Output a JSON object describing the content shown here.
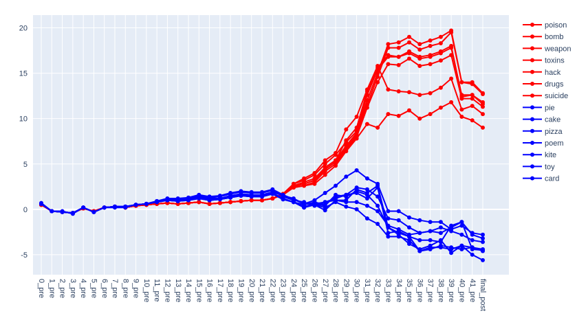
{
  "chart_data": {
    "type": "line",
    "title": "",
    "xlabel": "",
    "ylabel": "",
    "ylim": [
      -7.2,
      21.4
    ],
    "yticks": [
      -5,
      0,
      5,
      10,
      15,
      20
    ],
    "categories": [
      "0_pre",
      "1_pre",
      "2_pre",
      "3_pre",
      "4_pre",
      "5_pre",
      "6_pre",
      "7_pre",
      "8_pre",
      "9_pre",
      "10_pre",
      "11_pre",
      "12_pre",
      "13_pre",
      "14_pre",
      "15_pre",
      "16_pre",
      "17_pre",
      "18_pre",
      "19_pre",
      "20_pre",
      "21_pre",
      "22_pre",
      "23_pre",
      "24_pre",
      "25_pre",
      "26_pre",
      "27_pre",
      "28_pre",
      "29_pre",
      "30_pre",
      "31_pre",
      "32_pre",
      "33_pre",
      "34_pre",
      "35_pre",
      "36_pre",
      "37_pre",
      "38_pre",
      "39_pre",
      "40_pre",
      "41_pre",
      "final_post"
    ],
    "x_tick_labels": [
      "0_pre",
      "1_pre",
      "2_pre",
      "3_pre",
      "4_pre",
      "5_pre",
      "6_pre",
      "7_pre",
      "8_pre",
      "9_pre",
      "10_pre",
      "11_pre",
      "12_pre",
      "13_pre",
      "14_pre",
      "15_pre",
      "16_pre",
      "17_pre",
      "18_pre",
      "19_pre",
      "20_pre",
      "21_pre",
      "22_pre",
      "23_pre",
      "24_pre",
      "25_pre",
      "26_pre",
      "27_pre",
      "28_pre",
      "29_pre",
      "30_pre",
      "31_pre",
      "32_pre",
      "33_pre",
      "34_pre",
      "35_pre",
      "36_pre",
      "37_pre",
      "38_pre",
      "39_pre",
      "40_pre",
      "41_pre",
      "final_post"
    ],
    "legend_position": "right",
    "grid": true,
    "colors": {
      "red": "#ff0000",
      "blue": "#0000ff",
      "plot_bg": "#e5ecf6",
      "grid": "#ffffff",
      "text": "#2a3f5f"
    },
    "series": [
      {
        "name": "poison",
        "color": "#ff0000",
        "values": [
          0.6,
          -0.2,
          -0.3,
          -0.4,
          0.1,
          -0.2,
          0.2,
          0.3,
          0.2,
          0.4,
          0.5,
          0.6,
          0.7,
          0.6,
          0.7,
          0.8,
          0.6,
          0.7,
          0.8,
          0.9,
          1.0,
          1.0,
          1.2,
          1.6,
          2.6,
          3.0,
          3.4,
          4.6,
          5.4,
          7.0,
          8.4,
          12.0,
          15.0,
          18.2,
          18.4,
          19.0,
          18.2,
          18.6,
          19.0,
          19.7,
          14.0,
          14.0,
          12.8
        ]
      },
      {
        "name": "bomb",
        "color": "#ff0000",
        "values": [
          0.5,
          -0.2,
          -0.3,
          -0.4,
          0.1,
          -0.2,
          0.2,
          0.3,
          0.2,
          0.4,
          0.5,
          0.6,
          0.7,
          0.6,
          0.7,
          0.8,
          0.6,
          0.7,
          0.8,
          0.9,
          1.0,
          1.0,
          1.2,
          1.6,
          2.5,
          2.8,
          3.2,
          4.4,
          5.2,
          6.8,
          8.2,
          11.5,
          14.6,
          17.8,
          17.8,
          18.4,
          17.6,
          18.0,
          18.3,
          19.5,
          14.0,
          13.8,
          12.7
        ]
      },
      {
        "name": "weapon",
        "color": "#ff0000",
        "values": [
          0.5,
          -0.2,
          -0.3,
          -0.4,
          0.1,
          -0.2,
          0.2,
          0.3,
          0.2,
          0.4,
          0.5,
          0.6,
          0.7,
          0.6,
          0.7,
          0.8,
          0.6,
          0.7,
          0.8,
          0.9,
          1.0,
          1.0,
          1.2,
          1.7,
          2.8,
          3.2,
          3.8,
          5.0,
          6.0,
          7.4,
          8.6,
          12.6,
          15.4,
          16.8,
          16.8,
          17.4,
          16.8,
          17.0,
          17.4,
          18.0,
          12.4,
          12.6,
          11.6
        ]
      },
      {
        "name": "toxins",
        "color": "#ff0000",
        "values": [
          0.5,
          -0.2,
          -0.3,
          -0.4,
          0.1,
          -0.2,
          0.2,
          0.3,
          0.2,
          0.4,
          0.5,
          0.6,
          0.7,
          0.6,
          0.7,
          0.8,
          0.6,
          0.7,
          0.8,
          0.9,
          1.0,
          1.0,
          1.2,
          1.6,
          2.6,
          2.8,
          3.2,
          4.6,
          5.4,
          7.6,
          9.0,
          13.0,
          15.6,
          17.0,
          16.8,
          17.2,
          16.6,
          16.8,
          17.2,
          17.8,
          12.6,
          12.6,
          11.8
        ]
      },
      {
        "name": "hack",
        "color": "#ff0000",
        "values": [
          0.5,
          -0.2,
          -0.3,
          -0.4,
          0.1,
          -0.2,
          0.2,
          0.3,
          0.2,
          0.4,
          0.5,
          0.6,
          0.7,
          0.6,
          0.7,
          0.8,
          0.6,
          0.7,
          0.8,
          0.9,
          1.0,
          1.0,
          1.2,
          1.6,
          2.4,
          2.6,
          3.0,
          4.2,
          5.0,
          6.6,
          8.0,
          11.2,
          14.0,
          16.0,
          15.9,
          16.6,
          15.8,
          16.0,
          16.4,
          17.0,
          12.2,
          12.2,
          11.3
        ]
      },
      {
        "name": "drugs",
        "color": "#ff0000",
        "values": [
          0.5,
          -0.2,
          -0.3,
          -0.4,
          0.1,
          -0.2,
          0.2,
          0.3,
          0.2,
          0.4,
          0.5,
          0.6,
          0.7,
          0.6,
          0.7,
          0.8,
          0.6,
          0.7,
          0.8,
          0.9,
          1.0,
          1.0,
          1.2,
          1.7,
          2.8,
          3.4,
          4.0,
          5.4,
          6.2,
          8.8,
          10.2,
          13.2,
          15.8,
          13.2,
          13.0,
          12.9,
          12.6,
          12.8,
          13.4,
          14.4,
          11.0,
          11.4,
          10.5
        ]
      },
      {
        "name": "suicide",
        "color": "#ff0000",
        "values": [
          0.5,
          -0.2,
          -0.3,
          -0.4,
          0.1,
          -0.2,
          0.2,
          0.3,
          0.2,
          0.4,
          0.5,
          0.6,
          0.7,
          0.6,
          0.7,
          0.8,
          0.6,
          0.7,
          0.8,
          0.9,
          1.0,
          1.0,
          1.2,
          1.6,
          2.4,
          2.6,
          2.8,
          3.8,
          4.8,
          6.4,
          7.8,
          9.4,
          9.0,
          10.5,
          10.3,
          10.9,
          10.0,
          10.5,
          11.2,
          11.8,
          10.2,
          9.8,
          9.0
        ]
      },
      {
        "name": "pie",
        "color": "#0000ff",
        "values": [
          0.7,
          -0.2,
          -0.2,
          -0.5,
          0.2,
          -0.3,
          0.2,
          0.2,
          0.2,
          0.5,
          0.6,
          0.8,
          1.0,
          0.9,
          1.1,
          1.4,
          1.2,
          1.2,
          1.5,
          1.7,
          1.6,
          1.6,
          1.9,
          1.5,
          1.2,
          0.6,
          1.0,
          1.8,
          2.6,
          3.6,
          4.3,
          3.4,
          2.8,
          -0.2,
          -0.2,
          -0.9,
          -1.2,
          -1.4,
          -1.4,
          -2.2,
          -1.8,
          -2.6,
          -2.8
        ]
      },
      {
        "name": "cake",
        "color": "#0000ff",
        "values": [
          0.6,
          -0.2,
          -0.3,
          -0.4,
          0.2,
          -0.3,
          0.2,
          0.3,
          0.3,
          0.5,
          0.6,
          0.9,
          1.1,
          1.1,
          1.2,
          1.5,
          1.3,
          1.4,
          1.7,
          1.9,
          1.8,
          1.8,
          2.1,
          1.4,
          1.0,
          0.8,
          0.4,
          0.8,
          1.2,
          1.6,
          2.4,
          2.2,
          1.4,
          -1.0,
          -1.2,
          -2.0,
          -2.6,
          -2.4,
          -2.0,
          -2.4,
          -2.8,
          -3.4,
          -3.6
        ]
      },
      {
        "name": "pizza",
        "color": "#0000ff",
        "values": [
          0.6,
          -0.2,
          -0.3,
          -0.4,
          0.2,
          -0.3,
          0.2,
          0.3,
          0.3,
          0.5,
          0.6,
          0.9,
          1.2,
          1.2,
          1.3,
          1.6,
          1.4,
          1.5,
          1.8,
          2.0,
          1.9,
          1.9,
          2.2,
          1.6,
          1.1,
          0.6,
          0.6,
          0.4,
          1.6,
          1.4,
          2.0,
          1.6,
          0.4,
          -2.0,
          -2.6,
          -3.0,
          -3.4,
          -3.4,
          -3.6,
          -1.8,
          -1.4,
          -4.4,
          -4.5
        ]
      },
      {
        "name": "poem",
        "color": "#0000ff",
        "values": [
          0.6,
          -0.2,
          -0.3,
          -0.4,
          0.2,
          -0.3,
          0.2,
          0.3,
          0.3,
          0.5,
          0.6,
          0.8,
          1.0,
          1.0,
          1.1,
          1.3,
          1.1,
          1.2,
          1.4,
          1.6,
          1.5,
          1.5,
          1.8,
          1.2,
          0.8,
          0.3,
          0.6,
          0.8,
          1.0,
          0.8,
          0.8,
          0.4,
          -0.2,
          -1.8,
          -2.2,
          -2.8,
          -2.6,
          -2.4,
          -2.6,
          -2.0,
          -1.4,
          -2.8,
          -3.2
        ]
      },
      {
        "name": "kite",
        "color": "#0000ff",
        "values": [
          0.6,
          -0.2,
          -0.3,
          -0.4,
          0.2,
          -0.3,
          0.2,
          0.3,
          0.3,
          0.5,
          0.6,
          0.8,
          1.0,
          0.9,
          1.0,
          1.2,
          1.0,
          1.1,
          1.3,
          1.5,
          1.4,
          1.4,
          1.7,
          1.1,
          0.8,
          0.2,
          0.5,
          0.2,
          0.8,
          0.3,
          0.0,
          -1.0,
          -1.6,
          -3.0,
          -3.0,
          -3.4,
          -4.6,
          -4.2,
          -4.2,
          -4.4,
          -4.0,
          -5.0,
          -5.6
        ]
      },
      {
        "name": "toy",
        "color": "#0000ff",
        "values": [
          0.6,
          -0.2,
          -0.3,
          -0.4,
          0.2,
          -0.3,
          0.2,
          0.3,
          0.3,
          0.5,
          0.6,
          0.8,
          1.0,
          0.9,
          1.0,
          1.2,
          1.0,
          1.1,
          1.3,
          1.5,
          1.4,
          1.4,
          1.7,
          1.1,
          0.8,
          0.2,
          0.5,
          -0.1,
          1.0,
          1.0,
          2.2,
          1.8,
          2.6,
          -2.0,
          -2.8,
          -3.8,
          -4.4,
          -4.0,
          -3.4,
          -4.8,
          -4.0,
          -4.2,
          -4.6
        ]
      },
      {
        "name": "card",
        "color": "#0000ff",
        "values": [
          0.6,
          -0.2,
          -0.3,
          -0.4,
          0.2,
          -0.3,
          0.2,
          0.3,
          0.3,
          0.5,
          0.6,
          0.8,
          1.0,
          0.9,
          1.0,
          1.2,
          1.0,
          1.1,
          1.3,
          1.5,
          1.4,
          1.4,
          1.7,
          1.1,
          0.8,
          0.5,
          0.8,
          0.5,
          1.4,
          1.6,
          1.8,
          1.2,
          2.4,
          -2.6,
          -2.4,
          -3.0,
          -4.6,
          -4.4,
          -4.0,
          -4.2,
          -4.4,
          -4.2,
          -4.4
        ]
      }
    ]
  }
}
